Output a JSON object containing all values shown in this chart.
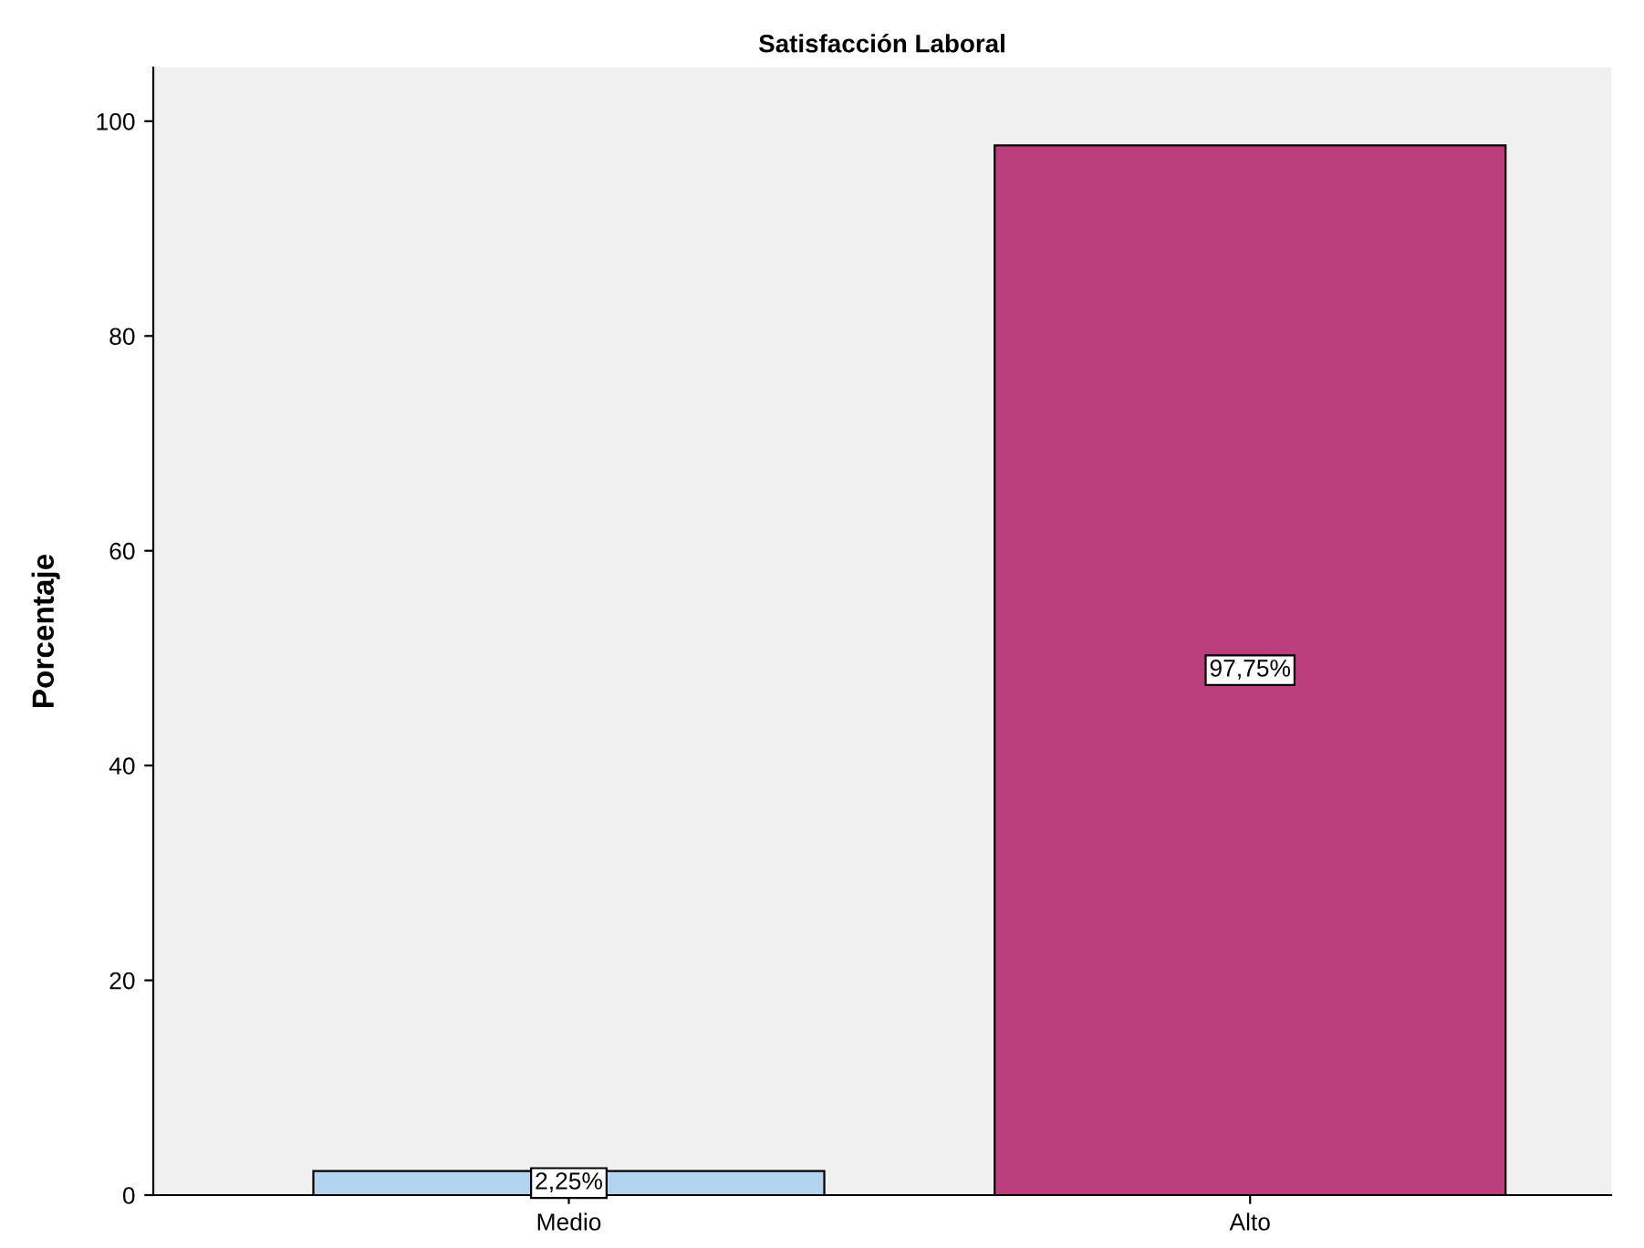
{
  "chart_data": {
    "type": "bar",
    "title": "Satisfacción Laboral",
    "ylabel": "Porcentaje",
    "categories": [
      "Medio",
      "Alto"
    ],
    "values": [
      2.25,
      97.75
    ],
    "colors": [
      "#b3d4ef",
      "#bb3f7d"
    ],
    "value_labels": [
      "2,25%",
      "97,75%"
    ],
    "ylim": [
      0,
      105
    ],
    "yticks": [
      0,
      20,
      40,
      60,
      80,
      100
    ],
    "grid": false
  }
}
